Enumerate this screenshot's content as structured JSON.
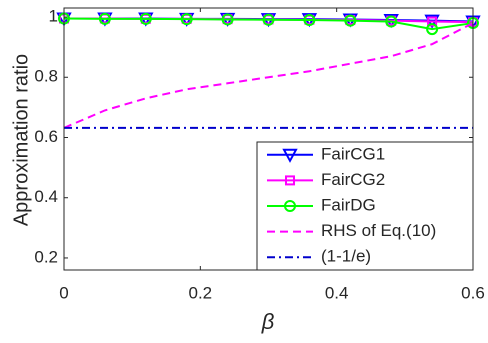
{
  "chart_data": {
    "type": "line",
    "xlabel": "β",
    "ylabel": "Approximation ratio",
    "x": [
      0,
      0.06,
      0.12,
      0.18,
      0.24,
      0.3,
      0.36,
      0.42,
      0.48,
      0.54,
      0.6
    ],
    "series": [
      {
        "name": "FairCG1",
        "color": "#0000ff",
        "marker": "triangle-down",
        "dash": "solid",
        "values": [
          0.995,
          0.995,
          0.995,
          0.994,
          0.994,
          0.993,
          0.993,
          0.992,
          0.99,
          0.988,
          0.985
        ]
      },
      {
        "name": "FairCG2",
        "color": "#ff00ff",
        "marker": "square",
        "dash": "solid",
        "values": [
          0.995,
          0.995,
          0.994,
          0.994,
          0.993,
          0.992,
          0.991,
          0.99,
          0.988,
          0.985,
          0.983
        ]
      },
      {
        "name": "FairDG",
        "color": "#00ff00",
        "marker": "circle",
        "dash": "solid",
        "values": [
          0.995,
          0.994,
          0.994,
          0.993,
          0.992,
          0.991,
          0.99,
          0.988,
          0.985,
          0.96,
          0.98
        ]
      },
      {
        "name": "RHS of Eq.(10)",
        "color": "#ff00ff",
        "marker": "none",
        "dash": "dashed",
        "values": [
          0.632,
          0.69,
          0.73,
          0.76,
          0.78,
          0.8,
          0.82,
          0.845,
          0.87,
          0.91,
          0.98
        ]
      },
      {
        "name": "(1-1/e)",
        "color": "#0000cc",
        "marker": "none",
        "dash": "dashdot",
        "values": [
          0.632,
          0.632,
          0.632,
          0.632,
          0.632,
          0.632,
          0.632,
          0.632,
          0.632,
          0.632,
          0.632
        ]
      }
    ],
    "xlim": [
      0,
      0.6
    ],
    "xticks": [
      0,
      0.2,
      0.4,
      0.6
    ],
    "ylim": [
      0.16,
      1.03
    ],
    "yticks": [
      0.2,
      0.4,
      0.6,
      0.8,
      1
    ],
    "legend": "lower-right"
  }
}
